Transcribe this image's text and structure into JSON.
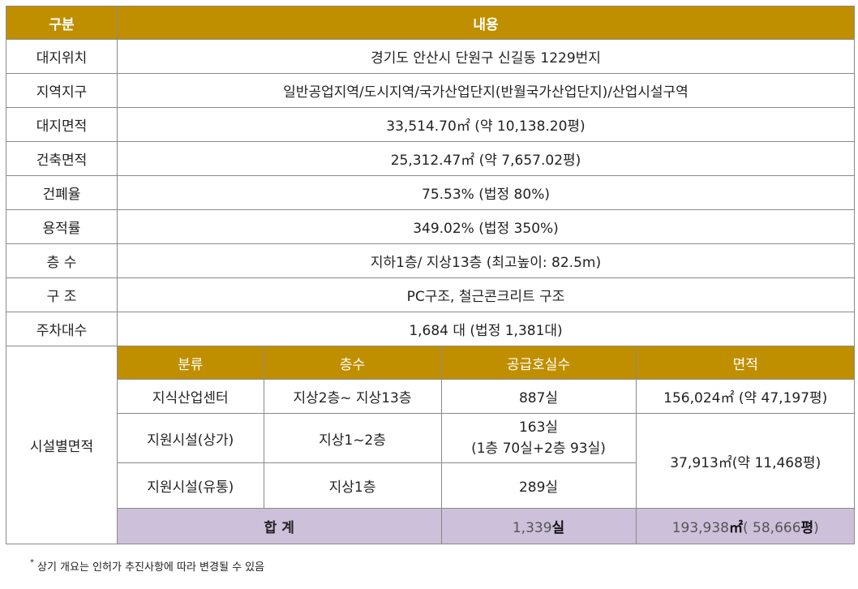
{
  "header": {
    "col1": "구분",
    "col2": "내용"
  },
  "rows": [
    {
      "label": "대지위치",
      "value": "경기도 안산시 단원구 신길동 1229번지"
    },
    {
      "label": "지역지구",
      "value": "일반공업지역/도시지역/국가산업단지(반월국가산업단지)/산업시설구역"
    },
    {
      "label": "대지면적",
      "value": "33,514.70㎡ (약 10,138.20평)"
    },
    {
      "label": "건축면적",
      "value": "25,312.47㎡ (약 7,657.02평)"
    },
    {
      "label": "건폐율",
      "value": "75.53% (법정 80%)"
    },
    {
      "label": "용적률",
      "value": "349.02% (법정 350%)"
    },
    {
      "label": "층 수",
      "value": "지하1층/ 지상13층 (최고높이: 82.5m)"
    },
    {
      "label": "구 조",
      "value": "PC구조, 철근콘크리트 구조"
    },
    {
      "label": "주차대수",
      "value": "1,684 대 (법정 1,381대)"
    }
  ],
  "facility": {
    "label": "시설별면적",
    "headers": {
      "type": "분류",
      "floors": "층수",
      "units": "공급호실수",
      "area": "면적"
    },
    "items": [
      {
        "type": "지식산업센터",
        "floors": "지상2층~ 지상13층",
        "units": "887실",
        "area": "156,024㎡ (약 47,197평)"
      },
      {
        "type": "지원시설(상가)",
        "floors": "지상1~2층",
        "units_line1": "163실",
        "units_line2": "(1층 70실+2층 93실)",
        "area": "37,913㎡(약 11,468평)"
      },
      {
        "type": "지원시설(유통)",
        "floors": "지상1층",
        "units": "289실"
      }
    ],
    "total": {
      "label": "합 계",
      "units_num": "1,339",
      "units_unit": "실",
      "area_num": "193,938",
      "area_unit": "㎡",
      "area_paren_open": "( ",
      "area_paren_num": "58,666",
      "area_paren_unit": "평",
      "area_paren_close": ")"
    }
  },
  "note": {
    "star": "*",
    "text": "상기 개요는 인허가 추진사항에 따라 변경될 수 있음"
  },
  "colors": {
    "header_bg": "#c08f00",
    "total_bg": "#ccc0da",
    "border": "#8a8a8a"
  }
}
